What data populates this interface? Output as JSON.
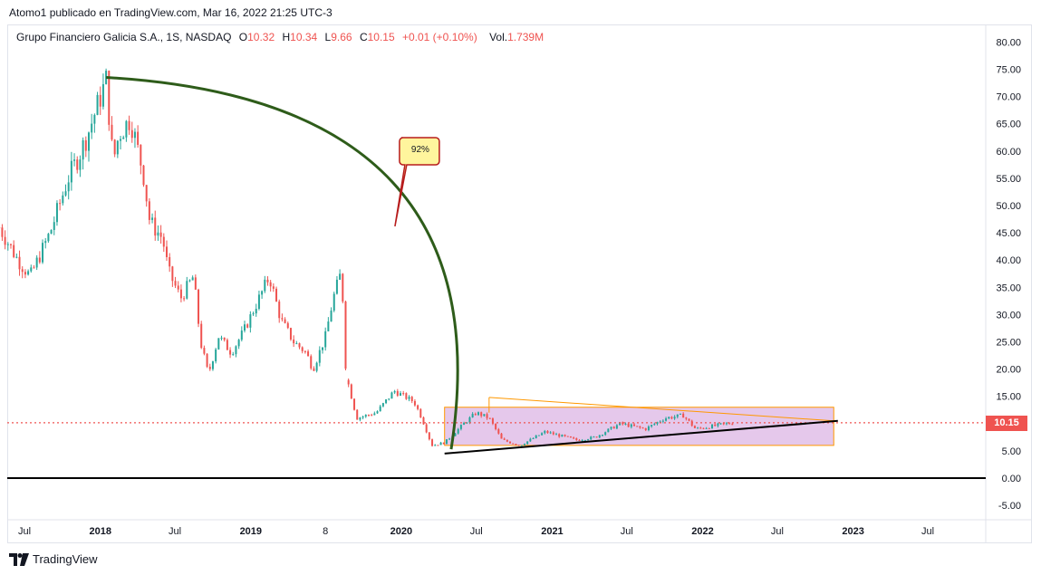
{
  "caption": "Atomo1 publicado en TradingView.com, Mar 16, 2022 21:25 UTC-3",
  "legend": {
    "symbol": "Grupo Financiero Galicia S.A., 1S, NASDAQ",
    "o_label": "O",
    "o_value": "10.32",
    "h_label": "H",
    "h_value": "10.34",
    "l_label": "L",
    "l_value": "9.66",
    "c_label": "C",
    "c_value": "10.15",
    "change": "+0.01 (+0.10%)",
    "vol_label": "Vol.",
    "vol_value": "1.739M"
  },
  "last_price_label": "10.15",
  "callout_label": "92%",
  "footer_brand": "TradingView",
  "colors": {
    "up": "#26a69a",
    "down": "#ef5350",
    "arc": "#2e5c1a",
    "box_fill": "#e1bee7",
    "box_border": "#ff9800",
    "callout_fill": "#fff59d",
    "callout_border": "#b71c1c"
  },
  "chart_data": {
    "type": "candlestick",
    "interval": "1 week",
    "y_axis_labels": [
      "80.00",
      "75.00",
      "70.00",
      "65.00",
      "60.00",
      "55.00",
      "50.00",
      "45.00",
      "40.00",
      "35.00",
      "30.00",
      "25.00",
      "20.00",
      "15.00",
      "10.00",
      "5.00",
      "0.00",
      "-5.00"
    ],
    "x_axis_labels": [
      "Jul",
      "2018",
      "Jul",
      "2019",
      "8",
      "2020",
      "Jul",
      "2021",
      "Jul",
      "2022",
      "Jul",
      "2023",
      "Jul"
    ],
    "ylim": [
      -8,
      82
    ],
    "last_price": 10.15,
    "close_path": [
      {
        "date": "2017-05-01",
        "close": 46
      },
      {
        "date": "2017-06-15",
        "close": 40
      },
      {
        "date": "2017-07-15",
        "close": 37
      },
      {
        "date": "2017-09-01",
        "close": 45
      },
      {
        "date": "2017-10-15",
        "close": 55
      },
      {
        "date": "2017-11-15",
        "close": 60
      },
      {
        "date": "2017-12-01",
        "close": 63
      },
      {
        "date": "2018-01-15",
        "close": 73
      },
      {
        "date": "2018-02-01",
        "close": 58
      },
      {
        "date": "2018-02-15",
        "close": 63
      },
      {
        "date": "2018-03-15",
        "close": 66
      },
      {
        "date": "2018-04-15",
        "close": 56
      },
      {
        "date": "2018-05-01",
        "close": 47
      },
      {
        "date": "2018-06-01",
        "close": 44
      },
      {
        "date": "2018-06-15",
        "close": 38
      },
      {
        "date": "2018-07-15",
        "close": 33
      },
      {
        "date": "2018-08-15",
        "close": 37
      },
      {
        "date": "2018-09-01",
        "close": 25
      },
      {
        "date": "2018-09-20",
        "close": 19
      },
      {
        "date": "2018-10-15",
        "close": 26
      },
      {
        "date": "2018-11-15",
        "close": 23
      },
      {
        "date": "2018-12-15",
        "close": 27
      },
      {
        "date": "2019-01-15",
        "close": 32
      },
      {
        "date": "2019-02-15",
        "close": 37
      },
      {
        "date": "2019-03-15",
        "close": 29
      },
      {
        "date": "2019-04-15",
        "close": 25
      },
      {
        "date": "2019-05-15",
        "close": 23
      },
      {
        "date": "2019-06-01",
        "close": 20
      },
      {
        "date": "2019-07-01",
        "close": 26
      },
      {
        "date": "2019-07-20",
        "close": 33
      },
      {
        "date": "2019-08-05",
        "close": 37
      },
      {
        "date": "2019-08-12",
        "close": 33
      },
      {
        "date": "2019-08-20",
        "close": 19
      },
      {
        "date": "2019-09-15",
        "close": 11
      },
      {
        "date": "2019-11-01",
        "close": 12
      },
      {
        "date": "2019-12-15",
        "close": 16
      },
      {
        "date": "2020-02-01",
        "close": 14
      },
      {
        "date": "2020-02-20",
        "close": 11
      },
      {
        "date": "2020-03-15",
        "close": 6
      },
      {
        "date": "2020-04-15",
        "close": 6.5
      },
      {
        "date": "2020-06-01",
        "close": 10
      },
      {
        "date": "2020-07-01",
        "close": 12
      },
      {
        "date": "2020-08-01",
        "close": 11
      },
      {
        "date": "2020-09-01",
        "close": 7
      },
      {
        "date": "2020-10-15",
        "close": 6
      },
      {
        "date": "2020-12-15",
        "close": 8.5
      },
      {
        "date": "2021-03-01",
        "close": 7
      },
      {
        "date": "2021-04-15",
        "close": 7.5
      },
      {
        "date": "2021-06-15",
        "close": 10
      },
      {
        "date": "2021-08-15",
        "close": 9
      },
      {
        "date": "2021-10-01",
        "close": 11
      },
      {
        "date": "2021-11-15",
        "close": 11.5
      },
      {
        "date": "2021-12-15",
        "close": 9
      },
      {
        "date": "2022-03-16",
        "close": 10.15
      }
    ],
    "drawings": {
      "rectangle": {
        "from": "2020-04-15",
        "to": "2022-11-15",
        "top": 13,
        "bottom": 6
      },
      "support_line": {
        "from": [
          "2020-04-15",
          4.5
        ],
        "to": [
          "2022-11-25",
          10.5
        ]
      },
      "triangle_top": {
        "from": [
          "2020-08-01",
          14.8
        ],
        "to": [
          "2022-11-15",
          10.5
        ]
      },
      "arc": {
        "from": [
          "2018-01-15",
          73.5
        ],
        "to": [
          "2020-05-01",
          5.3
        ]
      }
    }
  }
}
